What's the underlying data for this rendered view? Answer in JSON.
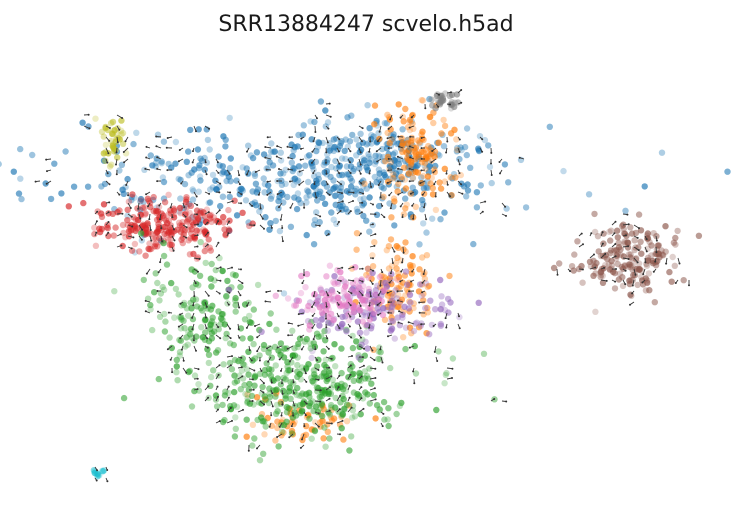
{
  "figure": {
    "title": "SRR13884247 scvelo.h5ad"
  },
  "chart_data": {
    "type": "scatter",
    "title": "SRR13884247 scvelo.h5ad",
    "xlabel": "",
    "ylabel": "",
    "axes_visible": false,
    "grid": false,
    "legend": "none",
    "overlay": "velocity arrows (grid stream)",
    "xlim": [
      0,
      100
    ],
    "ylim": [
      0,
      100
    ],
    "arrow_color": "#333333",
    "clusters": [
      {
        "id": "c-blue",
        "color": "#1f77b4",
        "center": [
          38,
          72
        ],
        "spread": [
          17,
          6
        ],
        "n": 420
      },
      {
        "id": "c-blue-2",
        "color": "#1f77b4",
        "center": [
          53,
          78
        ],
        "spread": [
          7,
          4
        ],
        "n": 160
      },
      {
        "id": "c-orange-top",
        "color": "#ff7f0e",
        "center": [
          57,
          78
        ],
        "spread": [
          3,
          6
        ],
        "n": 140
      },
      {
        "id": "c-orange-mid",
        "color": "#ff7f0e",
        "center": [
          54,
          48
        ],
        "spread": [
          3,
          5
        ],
        "n": 110
      },
      {
        "id": "c-orange-bot",
        "color": "#ff7f0e",
        "center": [
          40,
          18
        ],
        "spread": [
          4,
          3
        ],
        "n": 60
      },
      {
        "id": "c-red",
        "color": "#d62728",
        "center": [
          19,
          62
        ],
        "spread": [
          5,
          3
        ],
        "n": 240
      },
      {
        "id": "c-green",
        "color": "#2ca02c",
        "center": [
          40,
          26
        ],
        "spread": [
          8,
          6
        ],
        "n": 380
      },
      {
        "id": "c-green-2",
        "color": "#2ca02c",
        "center": [
          24,
          42
        ],
        "spread": [
          4,
          6
        ],
        "n": 140
      },
      {
        "id": "c-purple",
        "color": "#9467bd",
        "center": [
          50,
          42
        ],
        "spread": [
          6,
          4
        ],
        "n": 150
      },
      {
        "id": "c-pink",
        "color": "#e377c2",
        "center": [
          45,
          45
        ],
        "spread": [
          4,
          3
        ],
        "n": 110
      },
      {
        "id": "c-brown",
        "color": "#8c564b",
        "center": [
          89,
          54
        ],
        "spread": [
          4,
          4
        ],
        "n": 180
      },
      {
        "id": "c-gray",
        "color": "#7f7f7f",
        "center": [
          61,
          91
        ],
        "spread": [
          1,
          1
        ],
        "n": 30
      },
      {
        "id": "c-olive",
        "color": "#bcbd22",
        "center": [
          11,
          82
        ],
        "spread": [
          1,
          3
        ],
        "n": 40
      },
      {
        "id": "c-cyan",
        "color": "#17becf",
        "center": [
          9,
          5
        ],
        "spread": [
          0.4,
          0.4
        ],
        "n": 12
      }
    ]
  }
}
